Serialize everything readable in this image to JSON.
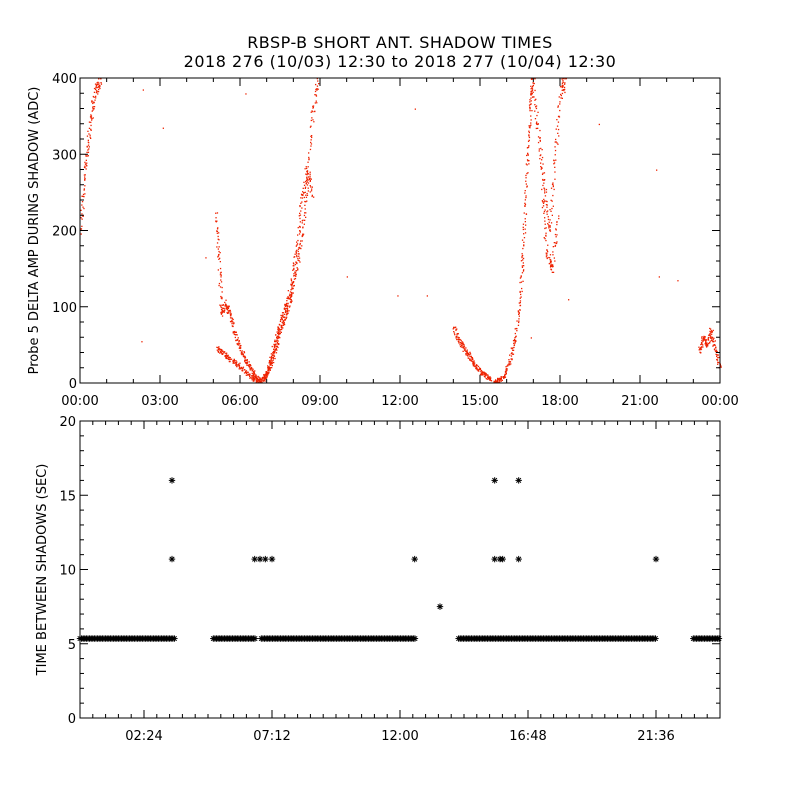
{
  "title_line1": "RBSP-B SHORT ANT. SHADOW TIMES",
  "title_line2": "2018 276 (10/03) 12:30 to 2018 277 (10/04) 12:30",
  "colors": {
    "top_points": "#ee2200",
    "bottom_points": "#000000",
    "axes": "#000000"
  },
  "chart_data": [
    {
      "type": "scatter",
      "ylabel": "Probe 5 DELTA AMP DURING SHADOW (ADC)",
      "xlim_hours": [
        0,
        24
      ],
      "ylim": [
        0,
        400
      ],
      "x_tick_labels": [
        "00:00",
        "03:00",
        "06:00",
        "09:00",
        "12:00",
        "15:00",
        "18:00",
        "21:00",
        "00:00"
      ],
      "y_ticks": [
        0,
        100,
        200,
        300,
        400
      ],
      "series": [
        {
          "segments": [
            {
              "x": [
                0.0,
                0.15,
                0.3,
                0.45,
                0.6,
                0.75
              ],
              "y": [
                200,
                270,
                320,
                360,
                390,
                400
              ]
            },
            {
              "x": [
                5.1,
                5.2,
                5.3,
                5.45,
                5.6,
                5.8,
                6.0,
                6.2,
                6.4,
                6.6,
                6.75
              ],
              "y": [
                220,
                160,
                90,
                105,
                90,
                65,
                45,
                30,
                18,
                8,
                3
              ]
            },
            {
              "x": [
                5.15,
                5.35,
                5.6,
                5.9,
                6.2,
                6.5,
                6.75
              ],
              "y": [
                45,
                40,
                32,
                25,
                15,
                6,
                2
              ]
            },
            {
              "x": [
                6.75,
                6.9,
                7.05,
                7.2,
                7.35,
                7.5,
                7.7,
                7.9,
                8.1,
                8.3,
                8.5,
                8.7,
                8.9
              ],
              "y": [
                3,
                8,
                18,
                30,
                50,
                70,
                90,
                115,
                150,
                190,
                260,
                350,
                400
              ]
            },
            {
              "x": [
                6.9,
                7.1,
                7.3,
                7.5,
                7.7,
                7.9,
                8.1,
                8.3,
                8.5,
                8.7
              ],
              "y": [
                5,
                25,
                55,
                80,
                100,
                125,
                175,
                240,
                280,
                250
              ]
            },
            {
              "x": [
                14.0,
                14.2,
                14.4,
                14.6,
                14.8,
                15.0,
                15.2,
                15.4
              ],
              "y": [
                75,
                55,
                45,
                35,
                25,
                15,
                10,
                5
              ]
            },
            {
              "x": [
                15.5,
                15.7,
                15.9,
                16.1,
                16.3,
                16.5,
                16.6,
                16.7,
                16.8,
                16.9,
                17.0
              ],
              "y": [
                2,
                5,
                10,
                30,
                60,
                110,
                170,
                250,
                320,
                380,
                400
              ]
            },
            {
              "x": [
                17.0,
                17.2,
                17.4,
                17.6,
                17.8,
                18.0,
                18.2
              ],
              "y": [
                380,
                320,
                260,
                200,
                300,
                380,
                400
              ]
            },
            {
              "x": [
                17.3,
                17.5,
                17.7,
                17.9
              ],
              "y": [
                250,
                170,
                150,
                220
              ]
            },
            {
              "x": [
                23.2,
                23.35,
                23.5,
                23.65,
                23.8,
                24.0
              ],
              "y": [
                40,
                60,
                50,
                70,
                45,
                20
              ]
            }
          ],
          "scatter": [
            {
              "x": 2.3,
              "y": 55
            },
            {
              "x": 2.35,
              "y": 385
            },
            {
              "x": 3.1,
              "y": 335
            },
            {
              "x": 4.7,
              "y": 165
            },
            {
              "x": 10.0,
              "y": 140
            },
            {
              "x": 11.9,
              "y": 115
            },
            {
              "x": 12.55,
              "y": 360
            },
            {
              "x": 13.0,
              "y": 115
            },
            {
              "x": 18.3,
              "y": 110
            },
            {
              "x": 19.45,
              "y": 340
            },
            {
              "x": 21.6,
              "y": 280
            },
            {
              "x": 21.7,
              "y": 140
            },
            {
              "x": 22.4,
              "y": 135
            },
            {
              "x": 16.9,
              "y": 60
            },
            {
              "x": 6.2,
              "y": 380
            }
          ]
        }
      ]
    },
    {
      "type": "scatter",
      "ylabel": "TIME BETWEEN SHADOWS (SEC)",
      "xlim_hours": [
        0,
        24
      ],
      "ylim": [
        0,
        20
      ],
      "x_ticks_hours": [
        2.4,
        7.2,
        12.0,
        16.8,
        21.6
      ],
      "x_tick_labels": [
        "02:24",
        "07:12",
        "12:00",
        "16:48",
        "21:36"
      ],
      "y_ticks": [
        0,
        5,
        10,
        15,
        20
      ],
      "baseline_value": 5.35,
      "baseline_ranges_hours": [
        [
          0.0,
          3.6
        ],
        [
          5.0,
          6.6
        ],
        [
          6.8,
          12.6
        ],
        [
          14.2,
          21.6
        ],
        [
          23.0,
          24.0
        ]
      ],
      "points": [
        {
          "x": 3.45,
          "y": 16
        },
        {
          "x": 3.45,
          "y": 10.7
        },
        {
          "x": 6.55,
          "y": 10.7
        },
        {
          "x": 6.75,
          "y": 10.7
        },
        {
          "x": 6.95,
          "y": 10.7
        },
        {
          "x": 7.2,
          "y": 10.7
        },
        {
          "x": 12.55,
          "y": 10.7
        },
        {
          "x": 13.5,
          "y": 7.5
        },
        {
          "x": 15.55,
          "y": 16
        },
        {
          "x": 15.55,
          "y": 10.7
        },
        {
          "x": 15.75,
          "y": 10.7
        },
        {
          "x": 15.85,
          "y": 10.7
        },
        {
          "x": 16.45,
          "y": 16
        },
        {
          "x": 16.45,
          "y": 10.7
        },
        {
          "x": 21.6,
          "y": 10.7
        }
      ]
    }
  ]
}
